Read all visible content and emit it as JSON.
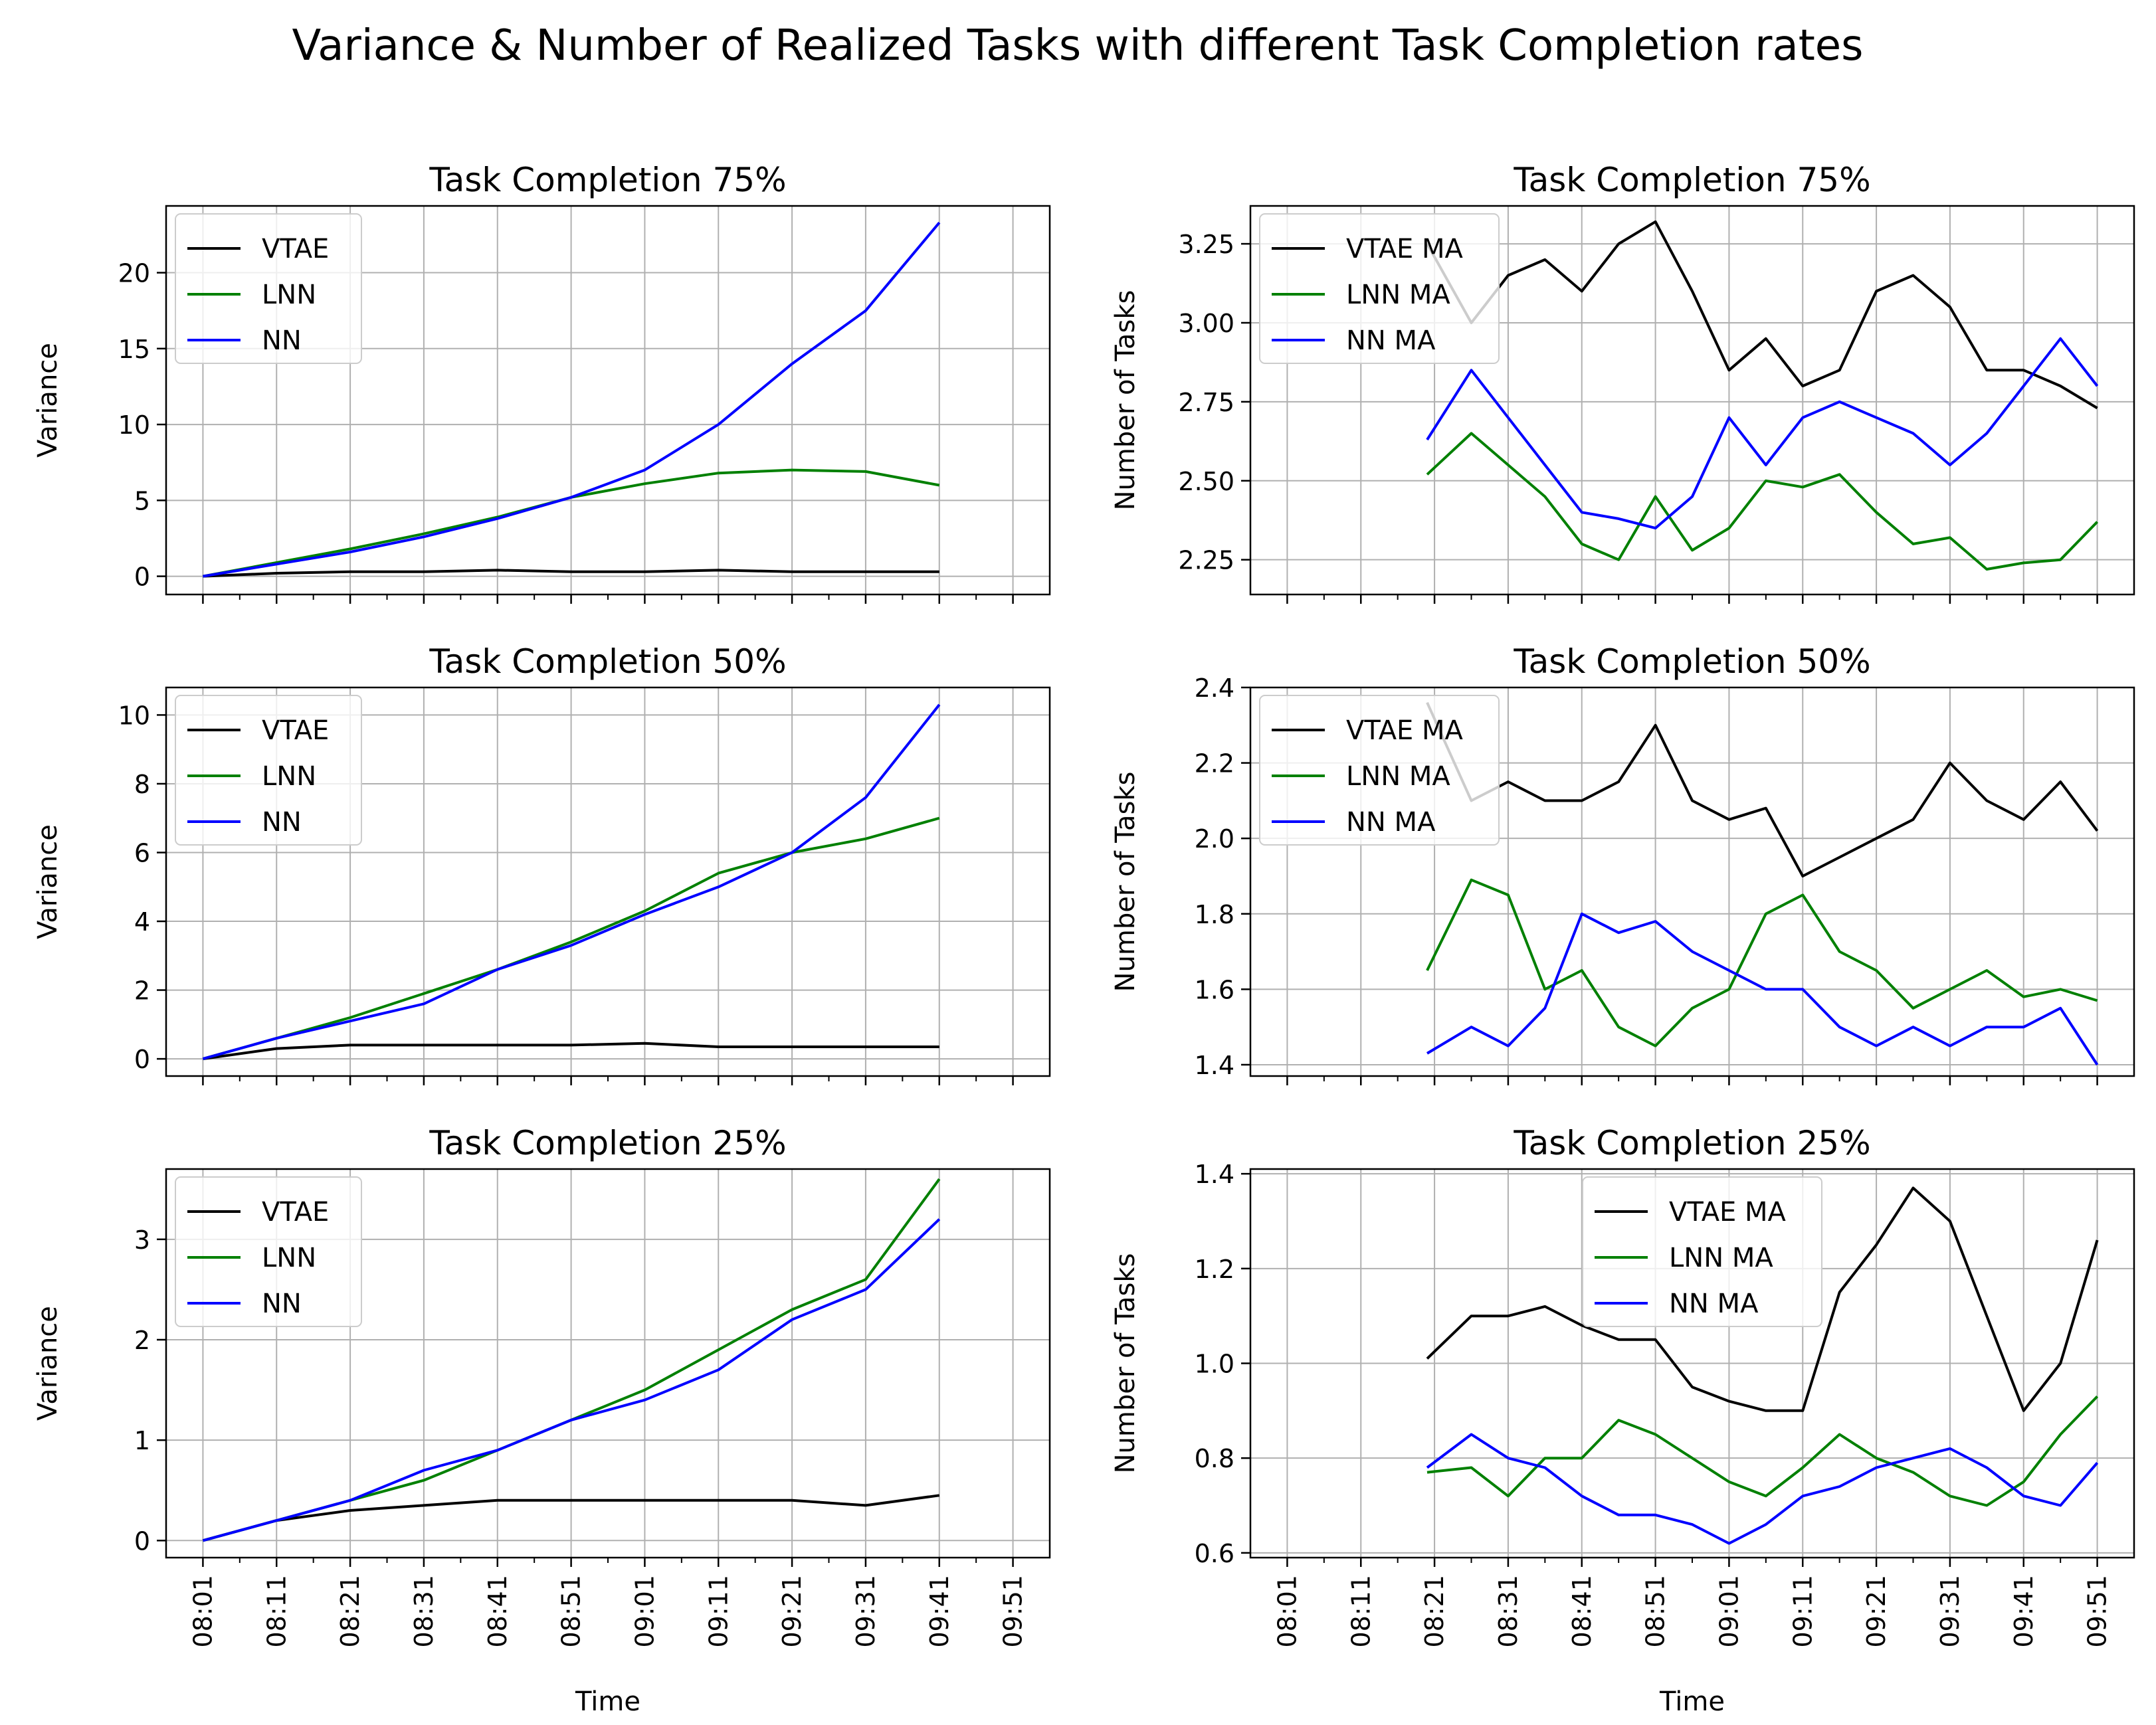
{
  "figure": {
    "title": "Variance & Number of Realized Tasks with different Task Completion rates"
  },
  "colors": {
    "vtae": "#000000",
    "lnn": "#008000",
    "nn": "#0000ff",
    "grid": "#b0b0b0",
    "axis": "#000000"
  },
  "chart_data": [
    {
      "type": "line",
      "title": "Task Completion 75%",
      "xlabel": "",
      "ylabel": "Variance",
      "x_ticks": [
        "08:01",
        "08:11",
        "08:21",
        "08:31",
        "08:41",
        "08:51",
        "09:01",
        "09:11",
        "09:21",
        "09:31",
        "09:41",
        "09:51"
      ],
      "x_tick_labels_visible": false,
      "xlim": [
        -0.05,
        1.15
      ],
      "ylim": [
        -1.2,
        24.4
      ],
      "yticks": [
        0,
        5,
        10,
        15,
        20
      ],
      "legend": "upper left",
      "series": [
        {
          "name": "VTAE",
          "color": "vtae",
          "x": [
            0,
            0.1,
            0.2,
            0.3,
            0.4,
            0.5,
            0.6,
            0.7,
            0.8,
            0.9,
            1.0
          ],
          "values": [
            0.0,
            0.2,
            0.3,
            0.3,
            0.4,
            0.3,
            0.3,
            0.4,
            0.3,
            0.3,
            0.3
          ]
        },
        {
          "name": "LNN",
          "color": "lnn",
          "x": [
            0,
            0.1,
            0.2,
            0.3,
            0.4,
            0.5,
            0.6,
            0.7,
            0.8,
            0.9,
            1.0
          ],
          "values": [
            0.0,
            0.9,
            1.8,
            2.8,
            3.9,
            5.2,
            6.1,
            6.8,
            7.0,
            6.9,
            6.0
          ]
        },
        {
          "name": "NN",
          "color": "nn",
          "x": [
            0,
            0.1,
            0.2,
            0.3,
            0.4,
            0.5,
            0.6,
            0.7,
            0.8,
            0.9,
            1.0
          ],
          "values": [
            0.0,
            0.8,
            1.6,
            2.6,
            3.8,
            5.2,
            7.0,
            10.0,
            14.0,
            17.5,
            23.3
          ]
        }
      ]
    },
    {
      "type": "line",
      "title": "Task Completion 75%",
      "xlabel": "",
      "ylabel": "Number of Tasks",
      "x_ticks": [
        "08:01",
        "08:11",
        "08:21",
        "08:31",
        "08:41",
        "08:51",
        "09:01",
        "09:11",
        "09:21",
        "09:31",
        "09:41",
        "09:51"
      ],
      "x_tick_labels_visible": false,
      "xlim": [
        -0.05,
        1.15
      ],
      "ylim": [
        2.14,
        3.37
      ],
      "yticks": [
        2.25,
        2.5,
        2.75,
        3.0,
        3.25
      ],
      "legend": "upper left",
      "series": [
        {
          "name": "VTAE MA",
          "color": "vtae",
          "x": [
            0.19,
            0.25,
            0.3,
            0.35,
            0.4,
            0.45,
            0.5,
            0.55,
            0.6,
            0.65,
            0.7,
            0.75,
            0.8,
            0.85,
            0.9,
            0.95,
            1.0,
            1.05,
            1.1
          ],
          "values": [
            3.25,
            3.0,
            3.15,
            3.2,
            3.1,
            3.25,
            3.32,
            3.1,
            2.85,
            2.95,
            2.8,
            2.85,
            3.1,
            3.15,
            3.05,
            2.85,
            2.85,
            2.8,
            2.73
          ]
        },
        {
          "name": "LNN MA",
          "color": "lnn",
          "x": [
            0.19,
            0.25,
            0.3,
            0.35,
            0.4,
            0.45,
            0.5,
            0.55,
            0.6,
            0.65,
            0.7,
            0.75,
            0.8,
            0.85,
            0.9,
            0.95,
            1.0,
            1.05,
            1.1
          ],
          "values": [
            2.52,
            2.65,
            2.55,
            2.45,
            2.3,
            2.25,
            2.45,
            2.28,
            2.35,
            2.5,
            2.48,
            2.52,
            2.4,
            2.3,
            2.32,
            2.22,
            2.24,
            2.25,
            2.37
          ]
        },
        {
          "name": "NN MA",
          "color": "nn",
          "x": [
            0.19,
            0.25,
            0.3,
            0.35,
            0.4,
            0.45,
            0.5,
            0.55,
            0.6,
            0.65,
            0.7,
            0.75,
            0.8,
            0.85,
            0.9,
            0.95,
            1.0,
            1.05,
            1.1
          ],
          "values": [
            2.63,
            2.85,
            2.7,
            2.55,
            2.4,
            2.38,
            2.35,
            2.45,
            2.7,
            2.55,
            2.7,
            2.75,
            2.7,
            2.65,
            2.55,
            2.65,
            2.8,
            2.95,
            2.8
          ]
        }
      ]
    },
    {
      "type": "line",
      "title": "Task Completion 50%",
      "xlabel": "",
      "ylabel": "Variance",
      "x_ticks": [
        "08:01",
        "08:11",
        "08:21",
        "08:31",
        "08:41",
        "08:51",
        "09:01",
        "09:11",
        "09:21",
        "09:31",
        "09:41",
        "09:51"
      ],
      "x_tick_labels_visible": false,
      "xlim": [
        -0.05,
        1.15
      ],
      "ylim": [
        -0.5,
        10.8
      ],
      "yticks": [
        0,
        2,
        4,
        6,
        8,
        10
      ],
      "legend": "upper left",
      "series": [
        {
          "name": "VTAE",
          "color": "vtae",
          "x": [
            0,
            0.1,
            0.2,
            0.3,
            0.4,
            0.5,
            0.6,
            0.7,
            0.8,
            0.9,
            1.0
          ],
          "values": [
            0.0,
            0.3,
            0.4,
            0.4,
            0.4,
            0.4,
            0.45,
            0.35,
            0.35,
            0.35,
            0.35
          ]
        },
        {
          "name": "LNN",
          "color": "lnn",
          "x": [
            0,
            0.1,
            0.2,
            0.3,
            0.4,
            0.5,
            0.6,
            0.7,
            0.8,
            0.9,
            1.0
          ],
          "values": [
            0.0,
            0.6,
            1.2,
            1.9,
            2.6,
            3.4,
            4.3,
            5.4,
            6.0,
            6.4,
            7.0
          ]
        },
        {
          "name": "NN",
          "color": "nn",
          "x": [
            0,
            0.1,
            0.2,
            0.3,
            0.4,
            0.5,
            0.6,
            0.7,
            0.8,
            0.9,
            1.0
          ],
          "values": [
            0.0,
            0.6,
            1.1,
            1.6,
            2.6,
            3.3,
            4.2,
            5.0,
            6.0,
            7.6,
            10.3
          ]
        }
      ]
    },
    {
      "type": "line",
      "title": "Task Completion 50%",
      "xlabel": "",
      "ylabel": "Number of Tasks",
      "x_ticks": [
        "08:01",
        "08:11",
        "08:21",
        "08:31",
        "08:41",
        "08:51",
        "09:01",
        "09:11",
        "09:21",
        "09:31",
        "09:41",
        "09:51"
      ],
      "x_tick_labels_visible": false,
      "xlim": [
        -0.05,
        1.15
      ],
      "ylim": [
        1.37,
        2.4
      ],
      "yticks": [
        1.4,
        1.6,
        1.8,
        2.0,
        2.2,
        2.4
      ],
      "legend": "upper left",
      "series": [
        {
          "name": "VTAE MA",
          "color": "vtae",
          "x": [
            0.19,
            0.25,
            0.3,
            0.35,
            0.4,
            0.45,
            0.5,
            0.55,
            0.6,
            0.65,
            0.7,
            0.75,
            0.8,
            0.85,
            0.9,
            0.95,
            1.0,
            1.05,
            1.1
          ],
          "values": [
            2.36,
            2.1,
            2.15,
            2.1,
            2.1,
            2.15,
            2.3,
            2.1,
            2.05,
            2.08,
            1.9,
            1.95,
            2.0,
            2.05,
            2.2,
            2.1,
            2.05,
            2.15,
            2.02
          ]
        },
        {
          "name": "LNN MA",
          "color": "lnn",
          "x": [
            0.19,
            0.25,
            0.3,
            0.35,
            0.4,
            0.45,
            0.5,
            0.55,
            0.6,
            0.65,
            0.7,
            0.75,
            0.8,
            0.85,
            0.9,
            0.95,
            1.0,
            1.05,
            1.1
          ],
          "values": [
            1.65,
            1.89,
            1.85,
            1.6,
            1.65,
            1.5,
            1.45,
            1.55,
            1.6,
            1.8,
            1.85,
            1.7,
            1.65,
            1.55,
            1.6,
            1.65,
            1.58,
            1.6,
            1.57
          ]
        },
        {
          "name": "NN MA",
          "color": "nn",
          "x": [
            0.19,
            0.25,
            0.3,
            0.35,
            0.4,
            0.45,
            0.5,
            0.55,
            0.6,
            0.65,
            0.7,
            0.75,
            0.8,
            0.85,
            0.9,
            0.95,
            1.0,
            1.05,
            1.1
          ],
          "values": [
            1.43,
            1.5,
            1.45,
            1.55,
            1.8,
            1.75,
            1.78,
            1.7,
            1.65,
            1.6,
            1.6,
            1.5,
            1.45,
            1.5,
            1.45,
            1.5,
            1.5,
            1.55,
            1.4
          ]
        }
      ]
    },
    {
      "type": "line",
      "title": "Task Completion 25%",
      "xlabel": "Time",
      "ylabel": "Variance",
      "x_ticks": [
        "08:01",
        "08:11",
        "08:21",
        "08:31",
        "08:41",
        "08:51",
        "09:01",
        "09:11",
        "09:21",
        "09:31",
        "09:41",
        "09:51"
      ],
      "x_tick_labels_visible": true,
      "xlim": [
        -0.05,
        1.15
      ],
      "ylim": [
        -0.17,
        3.7
      ],
      "yticks": [
        0,
        1,
        2,
        3
      ],
      "legend": "upper left",
      "series": [
        {
          "name": "VTAE",
          "color": "vtae",
          "x": [
            0,
            0.1,
            0.2,
            0.3,
            0.4,
            0.5,
            0.6,
            0.7,
            0.8,
            0.9,
            1.0
          ],
          "values": [
            0.0,
            0.2,
            0.3,
            0.35,
            0.4,
            0.4,
            0.4,
            0.4,
            0.4,
            0.35,
            0.45
          ]
        },
        {
          "name": "LNN",
          "color": "lnn",
          "x": [
            0,
            0.1,
            0.2,
            0.3,
            0.4,
            0.5,
            0.6,
            0.7,
            0.8,
            0.9,
            1.0
          ],
          "values": [
            0.0,
            0.2,
            0.4,
            0.6,
            0.9,
            1.2,
            1.5,
            1.9,
            2.3,
            2.6,
            3.6
          ]
        },
        {
          "name": "NN",
          "color": "nn",
          "x": [
            0,
            0.1,
            0.2,
            0.3,
            0.4,
            0.5,
            0.6,
            0.7,
            0.8,
            0.9,
            1.0
          ],
          "values": [
            0.0,
            0.2,
            0.4,
            0.7,
            0.9,
            1.2,
            1.4,
            1.7,
            2.2,
            2.5,
            3.2
          ]
        }
      ]
    },
    {
      "type": "line",
      "title": "Task Completion 25%",
      "xlabel": "Time",
      "ylabel": "Number of Tasks",
      "x_ticks": [
        "08:01",
        "08:11",
        "08:21",
        "08:31",
        "08:41",
        "08:51",
        "09:01",
        "09:11",
        "09:21",
        "09:31",
        "09:41",
        "09:51"
      ],
      "x_tick_labels_visible": true,
      "xlim": [
        -0.05,
        1.15
      ],
      "ylim": [
        0.59,
        1.41
      ],
      "yticks": [
        0.6,
        0.8,
        1.0,
        1.2,
        1.4
      ],
      "legend": "upper center",
      "series": [
        {
          "name": "VTAE MA",
          "color": "vtae",
          "x": [
            0.19,
            0.25,
            0.3,
            0.35,
            0.4,
            0.45,
            0.5,
            0.55,
            0.6,
            0.65,
            0.7,
            0.75,
            0.8,
            0.85,
            0.9,
            0.95,
            1.0,
            1.05,
            1.1
          ],
          "values": [
            1.01,
            1.1,
            1.1,
            1.12,
            1.08,
            1.05,
            1.05,
            0.95,
            0.92,
            0.9,
            0.9,
            1.15,
            1.25,
            1.37,
            1.3,
            1.1,
            0.9,
            1.0,
            1.26
          ]
        },
        {
          "name": "LNN MA",
          "color": "lnn",
          "x": [
            0.19,
            0.25,
            0.3,
            0.35,
            0.4,
            0.45,
            0.5,
            0.55,
            0.6,
            0.65,
            0.7,
            0.75,
            0.8,
            0.85,
            0.9,
            0.95,
            1.0,
            1.05,
            1.1
          ],
          "values": [
            0.77,
            0.78,
            0.72,
            0.8,
            0.8,
            0.88,
            0.85,
            0.8,
            0.75,
            0.72,
            0.78,
            0.85,
            0.8,
            0.77,
            0.72,
            0.7,
            0.75,
            0.85,
            0.93
          ]
        },
        {
          "name": "NN MA",
          "color": "nn",
          "x": [
            0.19,
            0.25,
            0.3,
            0.35,
            0.4,
            0.45,
            0.5,
            0.55,
            0.6,
            0.65,
            0.7,
            0.75,
            0.8,
            0.85,
            0.9,
            0.95,
            1.0,
            1.05,
            1.1
          ],
          "values": [
            0.78,
            0.85,
            0.8,
            0.78,
            0.72,
            0.68,
            0.68,
            0.66,
            0.62,
            0.66,
            0.72,
            0.74,
            0.78,
            0.8,
            0.82,
            0.78,
            0.72,
            0.7,
            0.79
          ]
        }
      ]
    }
  ]
}
